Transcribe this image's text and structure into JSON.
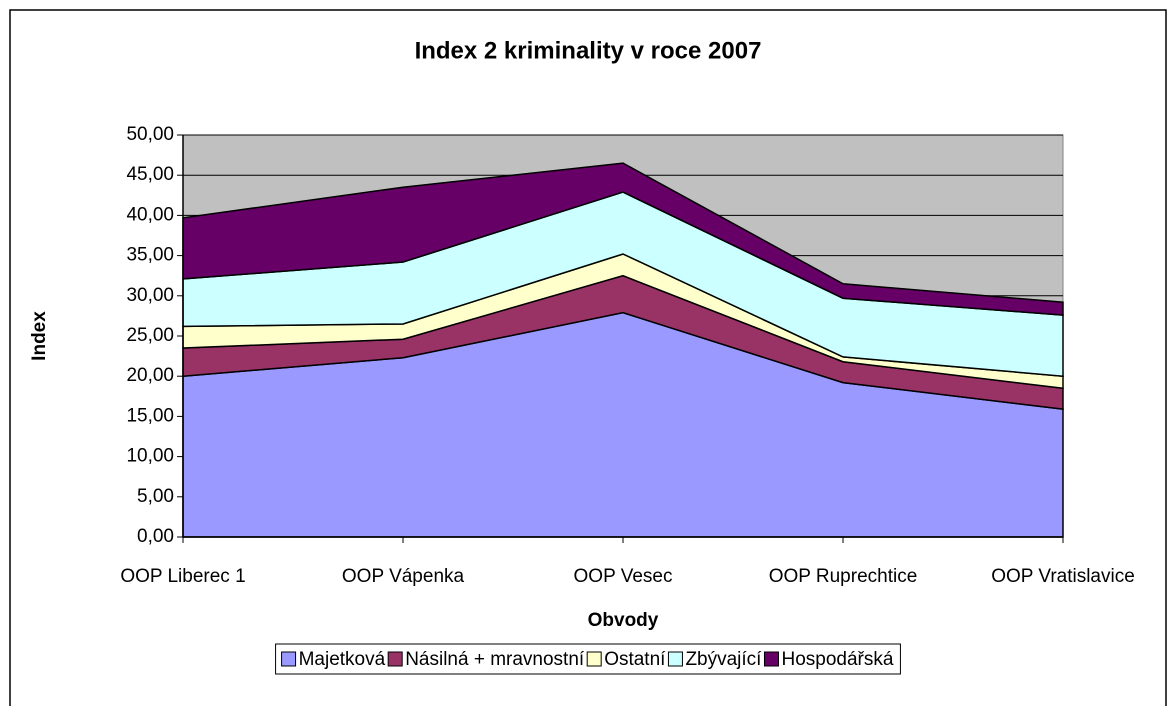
{
  "chart_data": {
    "type": "stacked_area",
    "title": "Index 2 kriminality v roce 2007",
    "x_label": "Obvody",
    "y_label": "Index",
    "categories": [
      "OOP Liberec 1",
      "OOP Vápenka",
      "OOP Vesec",
      "OOP Ruprechtice",
      "OOP Vratislavice"
    ],
    "series": [
      {
        "name": "Majetková",
        "color": "#9999ff",
        "values": [
          20.0,
          22.3,
          27.9,
          19.2,
          15.9
        ]
      },
      {
        "name": "Násilná + mravnostní",
        "color": "#993366",
        "values": [
          3.5,
          2.3,
          4.6,
          2.6,
          2.6
        ]
      },
      {
        "name": "Ostatní",
        "color": "#ffffcc",
        "values": [
          2.7,
          1.9,
          2.7,
          0.6,
          1.5
        ]
      },
      {
        "name": "Zbývající",
        "color": "#ccffff",
        "values": [
          5.9,
          7.7,
          7.7,
          7.3,
          7.6
        ]
      },
      {
        "name": "Hospodářská",
        "color": "#660066",
        "values": [
          7.6,
          9.3,
          3.6,
          1.8,
          1.6
        ]
      }
    ],
    "ylim": [
      0,
      50
    ],
    "yticks": [
      {
        "value": 0,
        "label": "0,00"
      },
      {
        "value": 5,
        "label": "5,00"
      },
      {
        "value": 10,
        "label": "10,00"
      },
      {
        "value": 15,
        "label": "15,00"
      },
      {
        "value": 20,
        "label": "20,00"
      },
      {
        "value": 25,
        "label": "25,00"
      },
      {
        "value": 30,
        "label": "30,00"
      },
      {
        "value": 35,
        "label": "35,00"
      },
      {
        "value": 40,
        "label": "40,00"
      },
      {
        "value": 45,
        "label": "45,00"
      },
      {
        "value": 50,
        "label": "50,00"
      }
    ],
    "grid": true,
    "plot_background": "#c0c0c0",
    "legend": "bottom"
  }
}
